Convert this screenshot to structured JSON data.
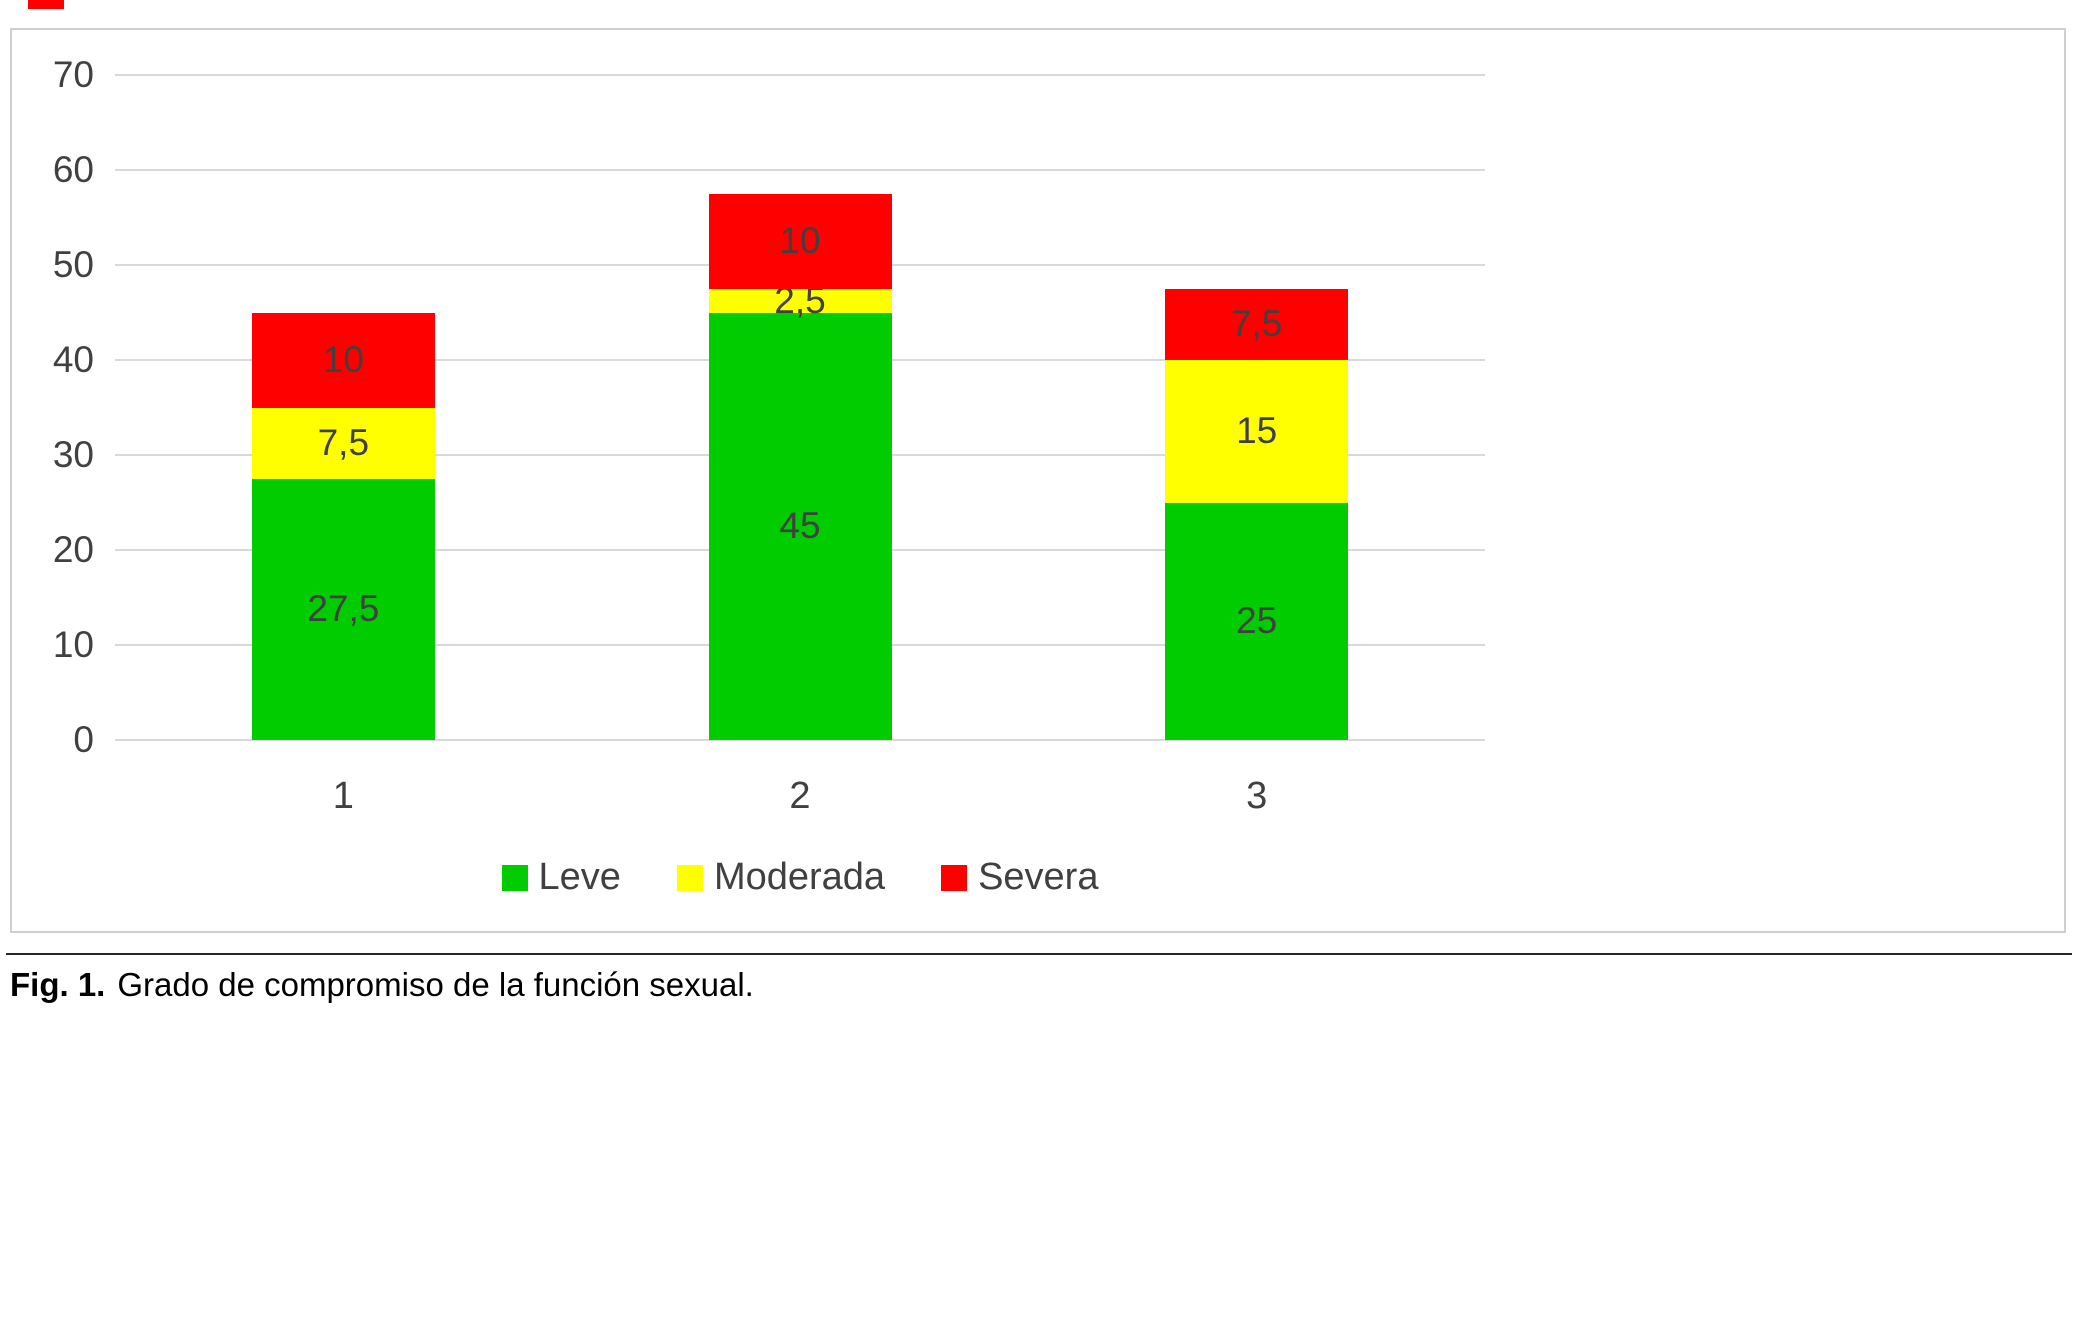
{
  "figure": {
    "caption_prefix": "Fig. 1.",
    "caption_text": "Grado de compromiso de la función sexual."
  },
  "chart_data": {
    "type": "bar",
    "stacked": true,
    "title": "",
    "xlabel": "",
    "ylabel": "",
    "categories": [
      "1",
      "2",
      "3"
    ],
    "series": [
      {
        "name": "Leve",
        "color": "#00cc00",
        "values": [
          27.5,
          45,
          25
        ],
        "labels": [
          "27,5",
          "45",
          "25"
        ]
      },
      {
        "name": "Moderada",
        "color": "#ffff00",
        "values": [
          7.5,
          2.5,
          15
        ],
        "labels": [
          "7,5",
          "2,5",
          "15"
        ]
      },
      {
        "name": "Severa",
        "color": "#ff0000",
        "values": [
          10,
          10,
          7.5
        ],
        "labels": [
          "10",
          "10",
          "7,5"
        ]
      }
    ],
    "totals": [
      45,
      57.5,
      47.5
    ],
    "ylim": [
      0,
      70
    ],
    "yticks": [
      0,
      10,
      20,
      30,
      40,
      50,
      60,
      70
    ],
    "grid": true,
    "legend_position": "bottom",
    "gridline_color": "#d9d9d9",
    "label_color": "#404040"
  }
}
